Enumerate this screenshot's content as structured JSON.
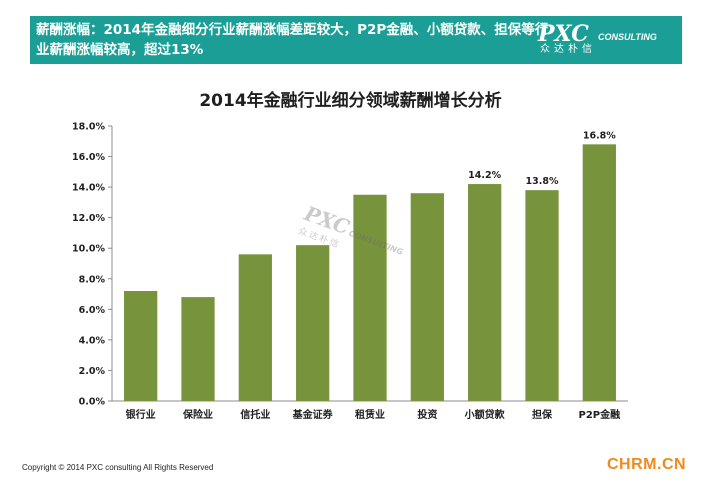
{
  "banner": {
    "text": "薪酬涨幅：2014年金融细分行业薪酬涨幅差距较大，P2P金融、小额贷款、担保等行业薪酬涨幅较高，超过13%",
    "logo_main": "PXC",
    "logo_sub": "CONSULTING",
    "logo_cn": "众达朴信",
    "color": "#1a9e95"
  },
  "chart_data": {
    "type": "bar",
    "title": "2014年金融行业细分领域薪酬增长分析",
    "categories": [
      "银行业",
      "保险业",
      "信托业",
      "基金证券",
      "租赁业",
      "投资",
      "小额贷款",
      "担保",
      "P2P金融"
    ],
    "values": [
      7.2,
      6.8,
      9.6,
      10.2,
      13.5,
      13.6,
      14.2,
      13.8,
      16.8
    ],
    "data_labels": [
      "",
      "",
      "",
      "",
      "",
      "",
      "14.2%",
      "13.8%",
      "16.8%"
    ],
    "ylim": [
      0,
      18
    ],
    "yticks": [
      "0.0%",
      "2.0%",
      "4.0%",
      "6.0%",
      "8.0%",
      "10.0%",
      "12.0%",
      "14.0%",
      "16.0%",
      "18.0%"
    ],
    "bar_color": "#77933c",
    "grid": false,
    "legend": "none"
  },
  "watermark": {
    "main": "PXC",
    "sub": "CONSULTING",
    "cn": "众达朴信"
  },
  "footer": {
    "copyright": "Copyright © 2014  PXC consulting All Rights Reserved",
    "site": "CHRM.CN"
  }
}
